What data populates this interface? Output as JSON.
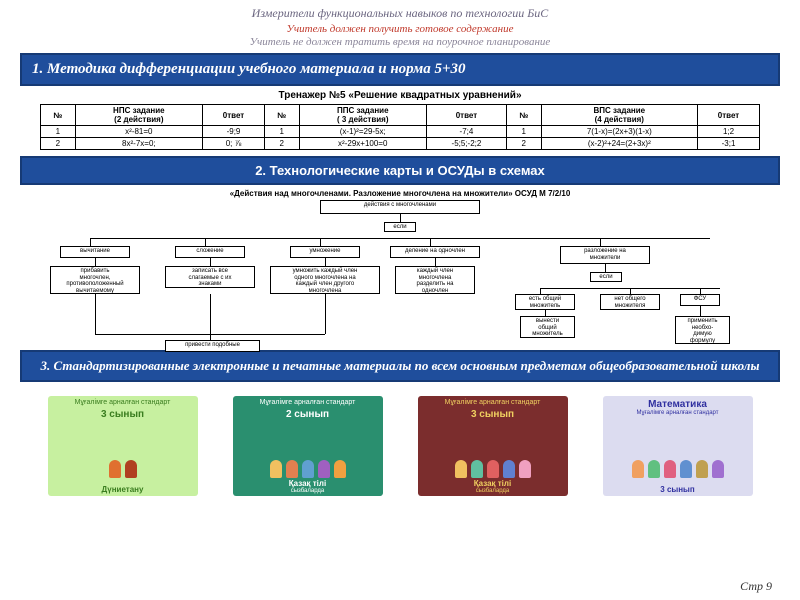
{
  "header": {
    "title": "Измерители функциональных навыков по технологии БиС",
    "line_red": "Учитель должен получить готовое содержание",
    "line_gray": "Учитель не должен тратить время на поурочное планирование"
  },
  "section1": {
    "label": "1.    Методика дифференциации учебного материала  и норма 5+30"
  },
  "trainer": {
    "title": "Тренажер №5  «Решение квадратных уравнений»",
    "columns": [
      "№",
      "НПС задание\n(2 действия)",
      "0твет",
      "№",
      "ППС задание\n( 3 действия)",
      "0твет",
      "№",
      "ВПС задание\n(4 действия)",
      "0твет"
    ],
    "rows": [
      [
        "1",
        "x²-81=0",
        "-9;9",
        "1",
        "(x-1)²=29-5x;",
        "-7;4",
        "1",
        "7(1-x)=(2x+3)(1-x)",
        "1;2"
      ],
      [
        "2",
        "8x²-7x=0;",
        "0; ⅞",
        "2",
        "x²-29x+100=0",
        "-5;5;-2;2",
        "2",
        "(x-2)²+24=(2+3x)²",
        "-3;1"
      ]
    ]
  },
  "section2": {
    "label": "2. Технологические  карты и ОСУДы в схемах"
  },
  "diagram": {
    "title": "«Действия над многочленами. Разложение многочлена на множители» ОСУД М 7/2/10",
    "nodes": {
      "root": "действия с многочленами",
      "esli1": "если",
      "n1": "вычитание",
      "n2": "сложение",
      "n3": "умножение",
      "n4": "деление на одночлен",
      "n5": "разложение на\nмножители",
      "d1": "прибавить\nмногочлен,\nпротивоположенный\nвычитаемому",
      "d2": "записать все\nслагаемые с их\nзнаками",
      "d3": "умножить каждый член\nодного многочлена на\nкаждый член другого\nмногочлена",
      "d4": "каждый член\nмногочлена\nразделить на\nодночлен",
      "esli2": "если",
      "e1": "есть общий\nмножитель",
      "e2": "нет общего\nмножителя",
      "e3": "ФСУ",
      "f1": "вынести\nобщий\nмножитель",
      "f2": "применить\nнеобхо-\nдимую\nформулу",
      "bottom": "привести подобные"
    }
  },
  "section3": {
    "label": "3. Стандартизированные электронные и печатные материалы  по всем основным  предметам  общеобразовательной школы"
  },
  "thumbs": [
    {
      "bg": "#c7f0a0",
      "accent": "#3a7d1f",
      "top": "Мұғалімге арналған стандарт",
      "mid": "3 сынып",
      "bot": "Дүниетану",
      "kids": [
        "#e07030",
        "#b04020"
      ]
    },
    {
      "bg": "#2a8f6f",
      "accent": "#fff",
      "top": "Мұғалімге арналған стандарт",
      "mid": "2 сынып",
      "bot": "Қазақ тілі",
      "sub": "cызбалардa",
      "kids": [
        "#f0c060",
        "#e08050",
        "#60a0d0",
        "#a060c0",
        "#f0a040"
      ]
    },
    {
      "bg": "#7b2d2d",
      "accent": "#f0d060",
      "top": "Мұғалімге арналған стандарт",
      "mid": "3 сынып",
      "bot": "Қазақ тілі",
      "sub": "cызбалардa",
      "kids": [
        "#f0c060",
        "#60c0a0",
        "#e06060",
        "#6080d0",
        "#f0a0c0"
      ]
    },
    {
      "bg": "#dcdcf0",
      "accent": "#3030a0",
      "top": "",
      "mid": "Математика",
      "sub2": "Мұғалімге арналған стандарт",
      "bot": "3 сынып",
      "kids": [
        "#f0a060",
        "#60c080",
        "#e06080",
        "#6090d0",
        "#c0a050",
        "#a070d0"
      ]
    }
  ],
  "pagenum": "Стр 9"
}
